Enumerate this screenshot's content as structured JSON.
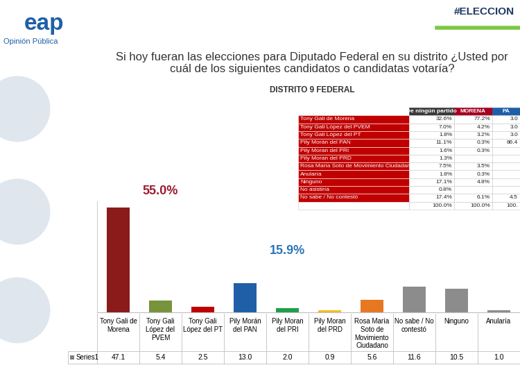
{
  "header": {
    "logo": "eap",
    "logo_subtitle": "Opinión Pública",
    "hashtag": "#ELECCION"
  },
  "chart_data": {
    "type": "bar",
    "title": "Si hoy fueran las elecciones para Diputado Federal en su distrito ¿Usted por cuál de los siguientes candidatos o candidatas votaría?",
    "subtitle": "DISTRITO 9 FEDERAL",
    "categories": [
      "Tony Gali de Morena",
      "Tony Gali López del PVEM",
      "Tony Gali López del PT",
      "Pily Morán del PAN",
      "Pily Moran del PRI",
      "Pily Moran del PRD",
      "Rosa María Soto de Movimiento Ciudadano",
      "No sabe / No contestó",
      "Ninguno",
      "Anularía"
    ],
    "series": [
      {
        "name": "Series1",
        "color": "#7f7f7f",
        "values": [
          47.1,
          5.4,
          2.5,
          13.0,
          2.0,
          0.9,
          5.6,
          11.6,
          10.5,
          1.0
        ],
        "colors": [
          "#8b1a1a",
          "#77933c",
          "#c00000",
          "#1f5fa8",
          "#1f9e4a",
          "#f0c020",
          "#e87722",
          "#8c8c8c",
          "#8c8c8c",
          "#8c8c8c"
        ]
      }
    ],
    "ylim": [
      0,
      50
    ],
    "yticks": [],
    "tick_labels": "x",
    "grid": false,
    "annotations": [
      {
        "text": "55.0%",
        "color": "#9b1b30"
      },
      {
        "text": "15.9%",
        "color": "#2e75b6"
      }
    ]
  },
  "inset_table": {
    "columns": [
      "De ningún partido",
      "MORENA",
      "PA"
    ],
    "header_colors": [
      "#3a3a3a",
      "#a50021",
      "#1f5fa8"
    ],
    "rows": [
      [
        "Tony Gali de Morena",
        "32.6%",
        "77.2%",
        "3.0"
      ],
      [
        "Tony Gali López del PVEM",
        "7.0%",
        "4.2%",
        "3.0"
      ],
      [
        "Tony Gali López del PT",
        "1.8%",
        "3.2%",
        "3.0"
      ],
      [
        "Pily Morán del PAN",
        "11.1%",
        "0.3%",
        "86.4"
      ],
      [
        "Pily Moran del PRI",
        "1.6%",
        "0.3%",
        null
      ],
      [
        "Pily Moran del PRD",
        "1.3%",
        null,
        null
      ],
      [
        "Rosa María Soto de Movimiento Ciudadano",
        "7.5%",
        "3.5%",
        null
      ],
      [
        "Anularía",
        "1.8%",
        "0.3%",
        null
      ],
      [
        "Ninguno",
        "17.1%",
        "4.8%",
        null
      ],
      [
        "No asistiría",
        "0.8%",
        null,
        null
      ],
      [
        "No sabe / No contestó",
        "17.4%",
        "6.1%",
        "4.5"
      ],
      [
        null,
        "100.0%",
        "100.0%",
        "100."
      ]
    ]
  }
}
